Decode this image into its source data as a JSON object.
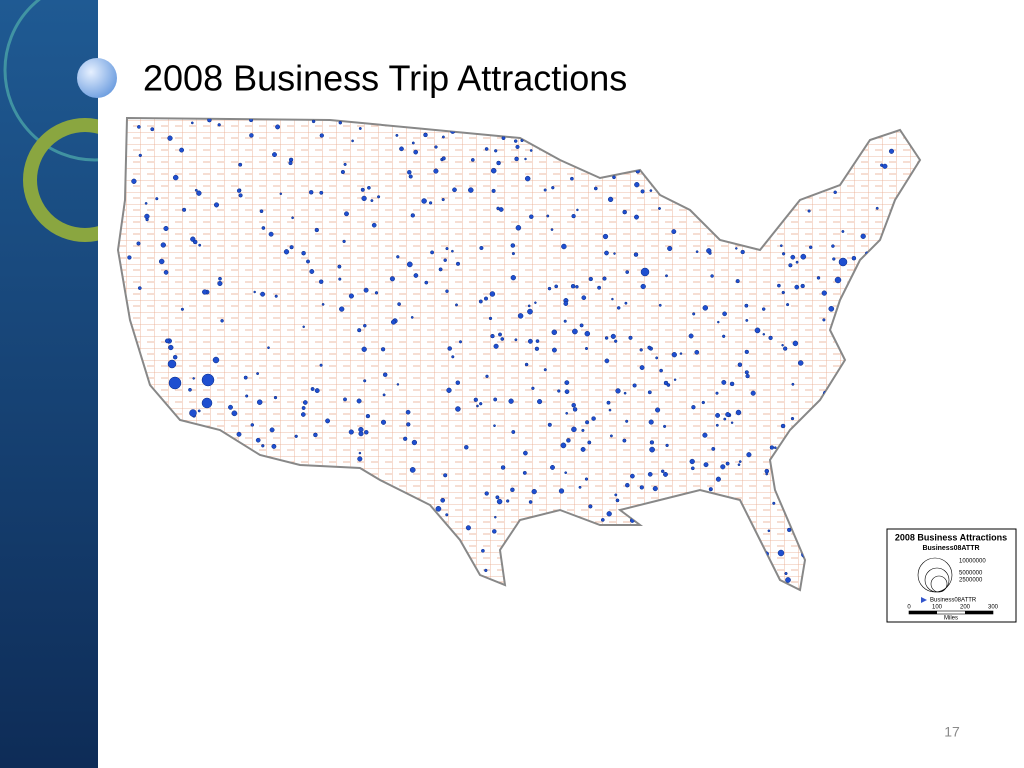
{
  "slide": {
    "title": "2008 Business Trip Attractions",
    "page_number": "17"
  },
  "legend": {
    "title": "2008 Business Attractions",
    "field": "Business08ATTR",
    "sizes": [
      "10000000",
      "5000000",
      "2500000"
    ],
    "symbol_label": "Business08ATTR",
    "scale": [
      "0",
      "100",
      "200",
      "300"
    ],
    "scale_unit": "Miles"
  }
}
